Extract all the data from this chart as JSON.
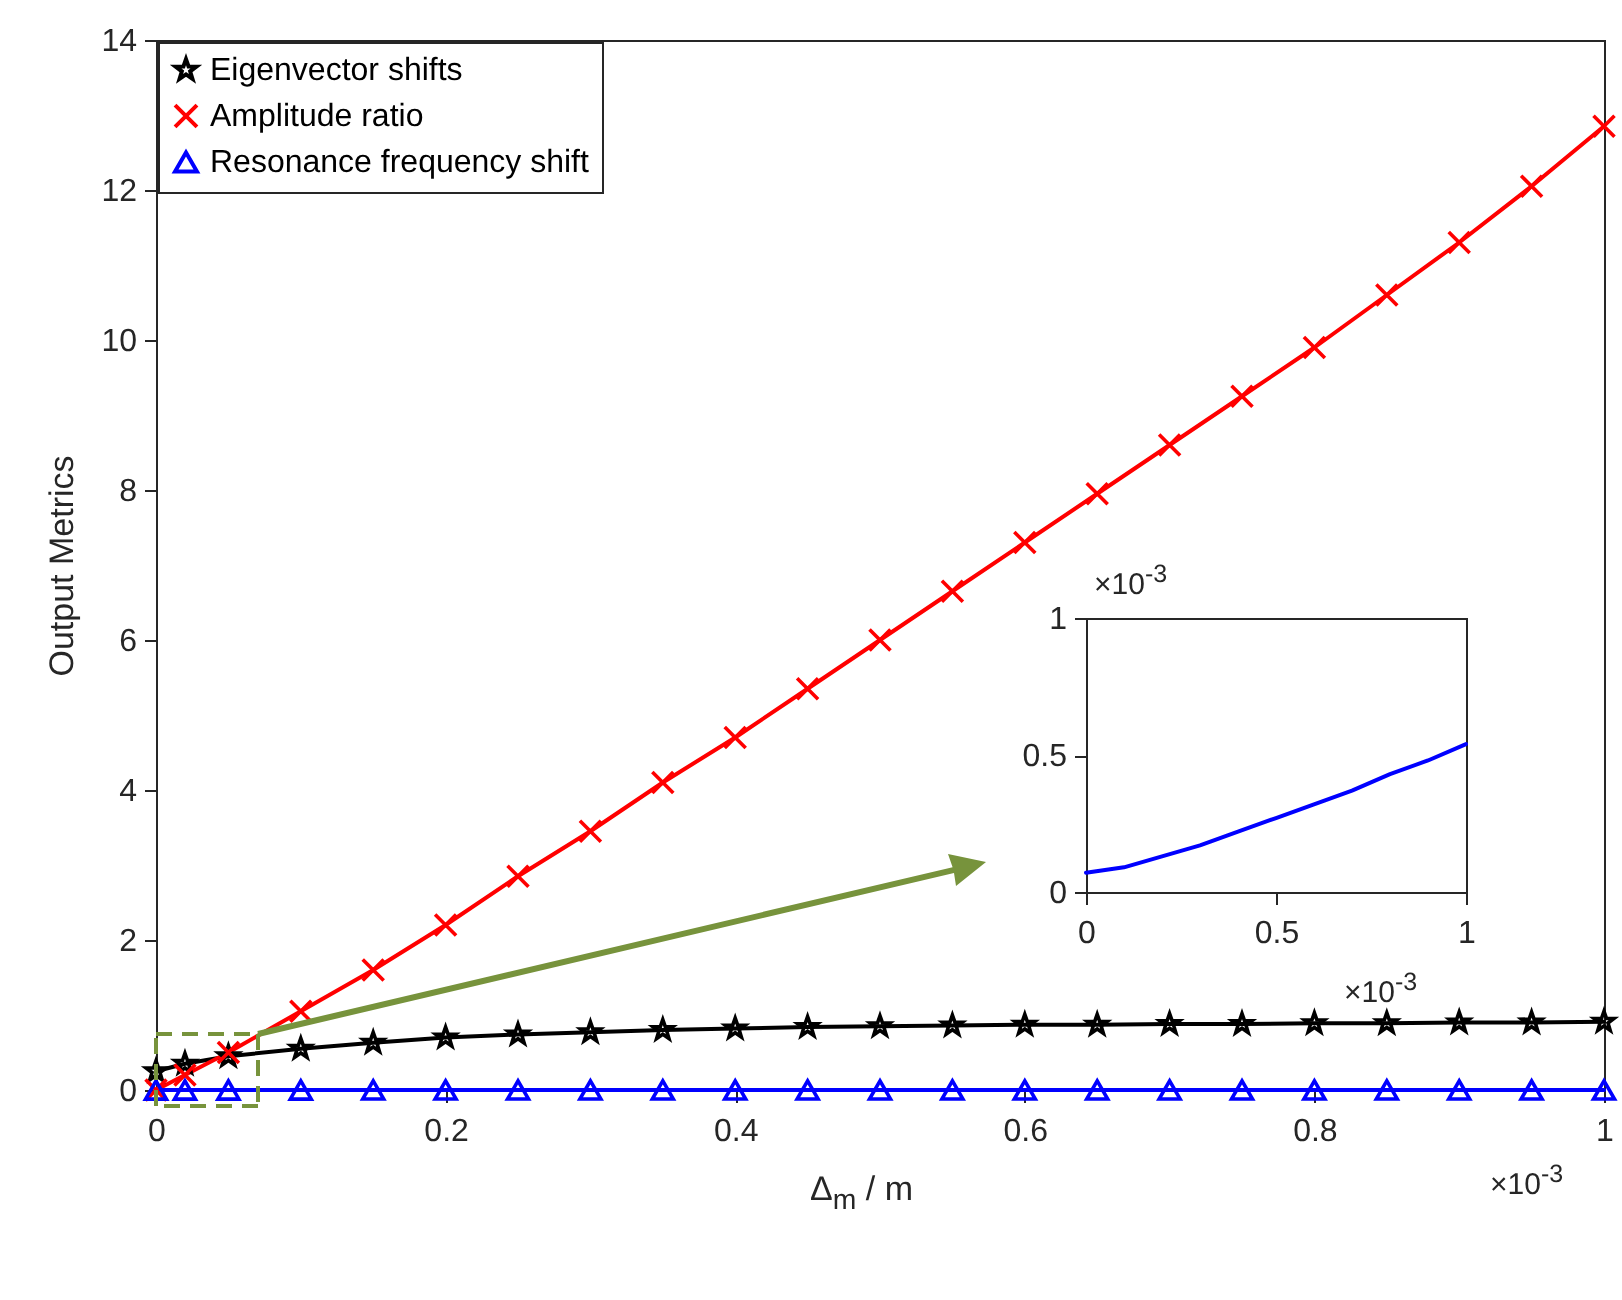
{
  "chart_data": [
    {
      "type": "line",
      "xlabel": "Δ$_{m}$ / m",
      "ylabel": "Output Metrics",
      "annotations": [
        "×10$^{-3}$"
      ],
      "x": [
        0,
        0.02,
        0.05,
        0.1,
        0.15,
        0.2,
        0.25,
        0.3,
        0.35,
        0.4,
        0.45,
        0.5,
        0.55,
        0.6,
        0.65,
        0.7,
        0.75,
        0.8,
        0.85,
        0.9,
        0.95,
        1
      ],
      "series": [
        {
          "name": "Eigenvector shifts",
          "color": "#000000",
          "marker": "star",
          "values": [
            0.25,
            0.35,
            0.45,
            0.55,
            0.63,
            0.7,
            0.74,
            0.77,
            0.8,
            0.82,
            0.84,
            0.85,
            0.86,
            0.87,
            0.87,
            0.88,
            0.88,
            0.89,
            0.89,
            0.9,
            0.9,
            0.91
          ]
        },
        {
          "name": "Amplitude ratio",
          "color": "#ff0000",
          "marker": "cross",
          "values": [
            0,
            0.2,
            0.5,
            1.05,
            1.6,
            2.2,
            2.85,
            3.45,
            4.1,
            4.7,
            5.35,
            6.0,
            6.65,
            7.3,
            7.95,
            8.6,
            9.25,
            9.9,
            10.6,
            11.3,
            12.05,
            12.85
          ]
        },
        {
          "name": "Resonance frequency shift",
          "color": "#0000ff",
          "marker": "triangle",
          "values": [
            7e-05,
            8e-05,
            8e-05,
            9e-05,
            0.00011,
            0.00013,
            0.00015,
            0.00017,
            0.0002,
            0.00022,
            0.00025,
            0.00027,
            0.0003,
            0.00032,
            0.00035,
            0.00037,
            0.0004,
            0.00043,
            0.00045,
            0.00048,
            0.00051,
            0.00054
          ]
        }
      ],
      "xlim": [
        0,
        1
      ],
      "xticks": [
        0,
        0.2,
        0.4,
        0.6,
        0.8,
        1
      ],
      "ylim": [
        0,
        14
      ],
      "yticks": [
        0,
        2,
        4,
        6,
        8,
        10,
        12,
        14
      ],
      "legend": "top left",
      "grid": false
    },
    {
      "type": "line",
      "annotations": [
        "×10$^{-3}$",
        "×10$^{-3}$"
      ],
      "x": [
        0,
        0.1,
        0.2,
        0.3,
        0.4,
        0.5,
        0.6,
        0.7,
        0.8,
        0.9,
        1
      ],
      "series": [
        {
          "color": "#0000ff",
          "values": [
            0.07,
            0.09,
            0.13,
            0.17,
            0.22,
            0.27,
            0.32,
            0.37,
            0.43,
            0.48,
            0.54
          ]
        }
      ],
      "xlim": [
        0,
        1
      ],
      "xticks": [
        0,
        0.5,
        1
      ],
      "ylim": [
        0,
        1
      ],
      "yticks": [
        0,
        0.5,
        1
      ],
      "grid": false
    }
  ]
}
